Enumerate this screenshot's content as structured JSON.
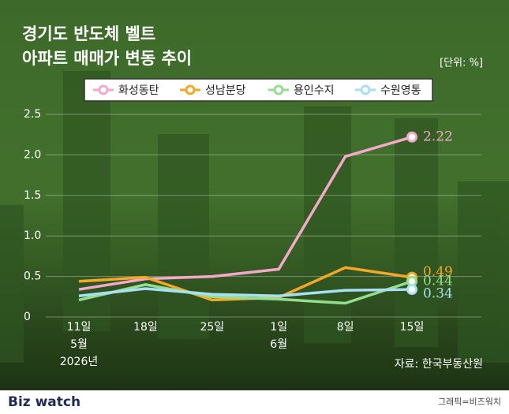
{
  "chart_data": {
    "type": "line",
    "title": "경기도 반도체 벨트",
    "subtitle": "아파트 매매가 변동 추이",
    "unit": "[단위: %]",
    "categories": [
      "11일",
      "18일",
      "25일",
      "1일",
      "8일",
      "15일"
    ],
    "months": [
      "5월",
      null,
      null,
      "6월",
      null,
      null
    ],
    "years": [
      "2026년",
      null,
      null,
      null,
      null,
      null
    ],
    "series": [
      {
        "name": "화성동탄",
        "color": "#f4a9cb",
        "values": [
          0.34,
          0.47,
          0.5,
          0.59,
          1.98,
          2.22
        ]
      },
      {
        "name": "성남분당",
        "color": "#f5a828",
        "values": [
          0.44,
          0.49,
          0.21,
          0.24,
          0.61,
          0.49
        ]
      },
      {
        "name": "용인수지",
        "color": "#93de8f",
        "values": [
          0.21,
          0.4,
          0.25,
          0.22,
          0.17,
          0.44
        ]
      },
      {
        "name": "수원영통",
        "color": "#a9dff3",
        "values": [
          0.26,
          0.35,
          0.28,
          0.26,
          0.33,
          0.34
        ]
      }
    ],
    "ylim": [
      0,
      2.5
    ],
    "yticks": [
      0,
      0.5,
      {
        "value": 1,
        "label": "1.0"
      },
      1.5,
      {
        "value": 2,
        "label": "2.0"
      },
      2.5
    ],
    "grid": true,
    "source": "자료: 한국부동산원",
    "brand": "Biz watch",
    "credit": "그래픽=비즈워치"
  }
}
